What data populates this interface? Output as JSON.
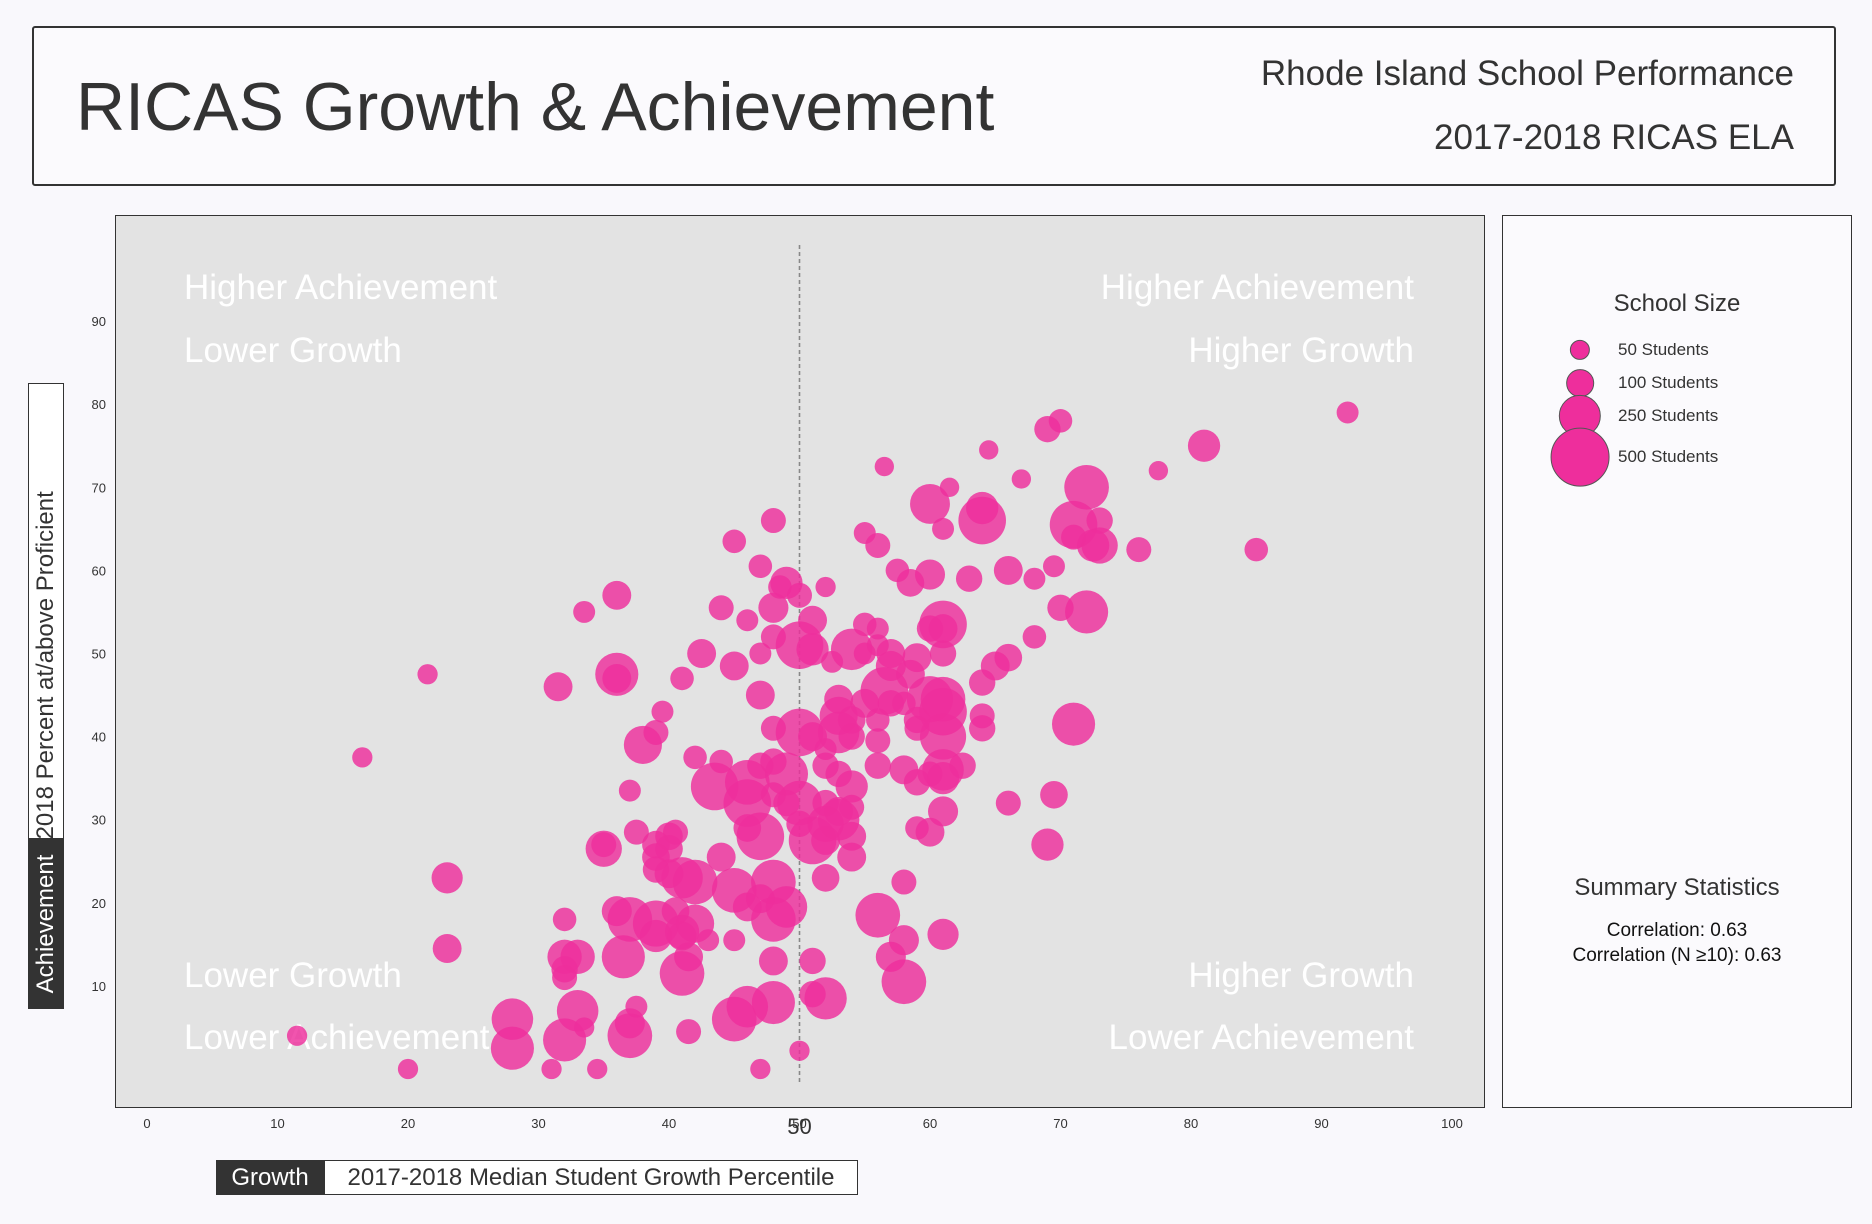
{
  "header": {
    "title": "RICAS Growth & Achievement",
    "subtitle_1": "Rhode Island School Performance",
    "subtitle_2": "2017-2018 RICAS ELA"
  },
  "axes": {
    "y_tag": "Achievement",
    "y_title": "2017-2018 Percent at/above Proficient",
    "x_tag": "Growth",
    "x_title": "2017-2018 Median Student Growth Percentile",
    "midline_label": "50"
  },
  "quadrants": {
    "top_left": [
      "Higher Achievement",
      "Lower Growth"
    ],
    "top_right": [
      "Higher Achievement",
      "Higher Growth"
    ],
    "bottom_left": [
      "Lower Growth",
      "Lower Achievement"
    ],
    "bottom_right": [
      "Higher Growth",
      "Lower Achievement"
    ]
  },
  "legend": {
    "title": "School Size",
    "items": [
      {
        "label": "50 Students",
        "students": 50
      },
      {
        "label": "100 Students",
        "students": 100
      },
      {
        "label": "250 Students",
        "students": 250
      },
      {
        "label": "500 Students",
        "students": 500
      }
    ]
  },
  "summary": {
    "title": "Summary Statistics",
    "correlation": "Correlation: 0.63",
    "correlation_n10": "Correlation (N ≥10): 0.63"
  },
  "colors": {
    "bubble": "#ee2e9c",
    "panel_bg": "#e3e3e3",
    "quadrant_text": "#ffffff"
  },
  "chart_data": {
    "type": "scatter",
    "xlim": [
      -2.5,
      102.5
    ],
    "ylim": [
      -2.5,
      102.5
    ],
    "x_ticks": [
      0,
      10,
      20,
      30,
      40,
      50,
      60,
      70,
      80,
      90,
      100
    ],
    "y_ticks": [
      10,
      20,
      30,
      40,
      50,
      60,
      70,
      80,
      90
    ],
    "reference_line_x": 50,
    "grid": false,
    "size_field": "students",
    "points": [
      {
        "x": 92,
        "y": 79,
        "students": 60
      },
      {
        "x": 81,
        "y": 75,
        "students": 140
      },
      {
        "x": 70,
        "y": 78,
        "students": 70
      },
      {
        "x": 69,
        "y": 77,
        "students": 90
      },
      {
        "x": 72,
        "y": 70,
        "students": 280
      },
      {
        "x": 77.5,
        "y": 72,
        "students": 45
      },
      {
        "x": 67,
        "y": 71,
        "students": 45
      },
      {
        "x": 64.5,
        "y": 74.5,
        "students": 45
      },
      {
        "x": 56.5,
        "y": 72.5,
        "students": 45
      },
      {
        "x": 61.5,
        "y": 70,
        "students": 45
      },
      {
        "x": 60,
        "y": 68,
        "students": 220
      },
      {
        "x": 64,
        "y": 67.5,
        "students": 140
      },
      {
        "x": 64,
        "y": 66,
        "students": 320
      },
      {
        "x": 71,
        "y": 65.5,
        "students": 320
      },
      {
        "x": 73,
        "y": 66,
        "students": 90
      },
      {
        "x": 61,
        "y": 65,
        "students": 60
      },
      {
        "x": 55,
        "y": 64.5,
        "students": 60
      },
      {
        "x": 56,
        "y": 63,
        "students": 80
      },
      {
        "x": 71,
        "y": 64,
        "students": 80
      },
      {
        "x": 72.5,
        "y": 63,
        "students": 140
      },
      {
        "x": 73,
        "y": 63,
        "students": 180
      },
      {
        "x": 76,
        "y": 62.5,
        "students": 80
      },
      {
        "x": 85,
        "y": 62.5,
        "students": 70
      },
      {
        "x": 48,
        "y": 66,
        "students": 80
      },
      {
        "x": 45,
        "y": 63.5,
        "students": 70
      },
      {
        "x": 47,
        "y": 60.5,
        "students": 70
      },
      {
        "x": 57.5,
        "y": 60,
        "students": 70
      },
      {
        "x": 60,
        "y": 59.5,
        "students": 120
      },
      {
        "x": 63,
        "y": 59,
        "students": 90
      },
      {
        "x": 66,
        "y": 60,
        "students": 110
      },
      {
        "x": 69.5,
        "y": 60.5,
        "students": 60
      },
      {
        "x": 68,
        "y": 59,
        "students": 60
      },
      {
        "x": 58.5,
        "y": 58.5,
        "students": 100
      },
      {
        "x": 48.5,
        "y": 58,
        "students": 70
      },
      {
        "x": 49,
        "y": 58.5,
        "students": 140
      },
      {
        "x": 50,
        "y": 57,
        "students": 80
      },
      {
        "x": 52,
        "y": 58,
        "students": 50
      },
      {
        "x": 36,
        "y": 57,
        "students": 110
      },
      {
        "x": 33.5,
        "y": 55,
        "students": 60
      },
      {
        "x": 44,
        "y": 55.5,
        "students": 80
      },
      {
        "x": 48,
        "y": 55.5,
        "students": 120
      },
      {
        "x": 46,
        "y": 54,
        "students": 60
      },
      {
        "x": 51,
        "y": 54,
        "students": 110
      },
      {
        "x": 55,
        "y": 53.5,
        "students": 70
      },
      {
        "x": 56,
        "y": 53,
        "students": 60
      },
      {
        "x": 61,
        "y": 53.5,
        "students": 320
      },
      {
        "x": 60,
        "y": 53,
        "students": 90
      },
      {
        "x": 61,
        "y": 53,
        "students": 110
      },
      {
        "x": 70,
        "y": 55.5,
        "students": 90
      },
      {
        "x": 72,
        "y": 55,
        "students": 260
      },
      {
        "x": 68,
        "y": 52,
        "students": 70
      },
      {
        "x": 48,
        "y": 52,
        "students": 80
      },
      {
        "x": 50,
        "y": 51,
        "students": 320
      },
      {
        "x": 51,
        "y": 50.5,
        "students": 140
      },
      {
        "x": 54,
        "y": 50.5,
        "students": 240
      },
      {
        "x": 56,
        "y": 51,
        "students": 60
      },
      {
        "x": 57,
        "y": 50,
        "students": 110
      },
      {
        "x": 59,
        "y": 49.5,
        "students": 110
      },
      {
        "x": 61,
        "y": 50,
        "students": 90
      },
      {
        "x": 66,
        "y": 49.5,
        "students": 100
      },
      {
        "x": 65,
        "y": 48.5,
        "students": 110
      },
      {
        "x": 42.5,
        "y": 50,
        "students": 110
      },
      {
        "x": 47,
        "y": 50,
        "students": 60
      },
      {
        "x": 45,
        "y": 48.5,
        "students": 110
      },
      {
        "x": 52.5,
        "y": 49,
        "students": 60
      },
      {
        "x": 55,
        "y": 50,
        "students": 60
      },
      {
        "x": 57,
        "y": 48.5,
        "students": 120
      },
      {
        "x": 58.5,
        "y": 47.5,
        "students": 110
      },
      {
        "x": 36,
        "y": 47.5,
        "students": 260
      },
      {
        "x": 36,
        "y": 47,
        "students": 110
      },
      {
        "x": 41,
        "y": 47,
        "students": 70
      },
      {
        "x": 21.5,
        "y": 47.5,
        "students": 50
      },
      {
        "x": 31.5,
        "y": 46,
        "students": 110
      },
      {
        "x": 47,
        "y": 45,
        "students": 110
      },
      {
        "x": 53,
        "y": 44.5,
        "students": 110
      },
      {
        "x": 55,
        "y": 44,
        "students": 110
      },
      {
        "x": 56.5,
        "y": 45.5,
        "students": 320
      },
      {
        "x": 57,
        "y": 44,
        "students": 90
      },
      {
        "x": 58,
        "y": 44,
        "students": 70
      },
      {
        "x": 60,
        "y": 44.5,
        "students": 300
      },
      {
        "x": 61,
        "y": 44.5,
        "students": 280
      },
      {
        "x": 64,
        "y": 46.5,
        "students": 90
      },
      {
        "x": 39.5,
        "y": 43,
        "students": 60
      },
      {
        "x": 53,
        "y": 42.5,
        "students": 200
      },
      {
        "x": 54,
        "y": 42,
        "students": 100
      },
      {
        "x": 56,
        "y": 42,
        "students": 70
      },
      {
        "x": 61,
        "y": 43,
        "students": 320
      },
      {
        "x": 59,
        "y": 42,
        "students": 90
      },
      {
        "x": 59,
        "y": 41,
        "students": 80
      },
      {
        "x": 64,
        "y": 42.5,
        "students": 80
      },
      {
        "x": 64,
        "y": 41,
        "students": 90
      },
      {
        "x": 71,
        "y": 41.5,
        "students": 260
      },
      {
        "x": 39,
        "y": 40.5,
        "students": 80
      },
      {
        "x": 48,
        "y": 41,
        "students": 80
      },
      {
        "x": 50,
        "y": 40.5,
        "students": 320
      },
      {
        "x": 51,
        "y": 40,
        "students": 110
      },
      {
        "x": 53,
        "y": 40.5,
        "students": 240
      },
      {
        "x": 54,
        "y": 40,
        "students": 90
      },
      {
        "x": 56,
        "y": 39.5,
        "students": 80
      },
      {
        "x": 61,
        "y": 40,
        "students": 300
      },
      {
        "x": 38,
        "y": 39,
        "students": 200
      },
      {
        "x": 52,
        "y": 38.5,
        "students": 60
      },
      {
        "x": 42,
        "y": 37.5,
        "students": 70
      },
      {
        "x": 44,
        "y": 37,
        "students": 70
      },
      {
        "x": 47,
        "y": 36.5,
        "students": 90
      },
      {
        "x": 48,
        "y": 37,
        "students": 90
      },
      {
        "x": 49,
        "y": 35.5,
        "students": 260
      },
      {
        "x": 52,
        "y": 36.5,
        "students": 90
      },
      {
        "x": 53,
        "y": 35.5,
        "students": 90
      },
      {
        "x": 56,
        "y": 36.5,
        "students": 90
      },
      {
        "x": 58,
        "y": 36,
        "students": 110
      },
      {
        "x": 60,
        "y": 35.5,
        "students": 80
      },
      {
        "x": 61,
        "y": 36,
        "students": 240
      },
      {
        "x": 61,
        "y": 35,
        "students": 140
      },
      {
        "x": 62.5,
        "y": 36.5,
        "students": 90
      },
      {
        "x": 59,
        "y": 34.5,
        "students": 90
      },
      {
        "x": 43.5,
        "y": 34,
        "students": 320
      },
      {
        "x": 46,
        "y": 34.5,
        "students": 280
      },
      {
        "x": 48,
        "y": 33,
        "students": 80
      },
      {
        "x": 54,
        "y": 34,
        "students": 140
      },
      {
        "x": 37,
        "y": 33.5,
        "students": 60
      },
      {
        "x": 46,
        "y": 32,
        "students": 320
      },
      {
        "x": 49,
        "y": 32,
        "students": 90
      },
      {
        "x": 50,
        "y": 32,
        "students": 280
      },
      {
        "x": 52,
        "y": 32,
        "students": 90
      },
      {
        "x": 53,
        "y": 31,
        "students": 110
      },
      {
        "x": 54,
        "y": 31.5,
        "students": 80
      },
      {
        "x": 61,
        "y": 31,
        "students": 120
      },
      {
        "x": 66,
        "y": 32,
        "students": 80
      },
      {
        "x": 69.5,
        "y": 33,
        "students": 100
      },
      {
        "x": 50,
        "y": 29.5,
        "students": 90
      },
      {
        "x": 46,
        "y": 29,
        "students": 100
      },
      {
        "x": 47,
        "y": 28,
        "students": 320
      },
      {
        "x": 53,
        "y": 30,
        "students": 240
      },
      {
        "x": 52,
        "y": 29.5,
        "students": 180
      },
      {
        "x": 54,
        "y": 28,
        "students": 110
      },
      {
        "x": 51,
        "y": 27.5,
        "students": 320
      },
      {
        "x": 52,
        "y": 27.5,
        "students": 110
      },
      {
        "x": 59,
        "y": 29,
        "students": 70
      },
      {
        "x": 60,
        "y": 28.5,
        "students": 110
      },
      {
        "x": 69,
        "y": 27,
        "students": 140
      },
      {
        "x": 37.5,
        "y": 28.5,
        "students": 80
      },
      {
        "x": 40,
        "y": 28,
        "students": 100
      },
      {
        "x": 40.5,
        "y": 28.5,
        "students": 80
      },
      {
        "x": 35,
        "y": 26.5,
        "students": 180
      },
      {
        "x": 35,
        "y": 27,
        "students": 80
      },
      {
        "x": 39,
        "y": 27,
        "students": 100
      },
      {
        "x": 40,
        "y": 26.5,
        "students": 100
      },
      {
        "x": 39,
        "y": 25.5,
        "students": 100
      },
      {
        "x": 44,
        "y": 25.5,
        "students": 110
      },
      {
        "x": 54,
        "y": 25.5,
        "students": 110
      },
      {
        "x": 39,
        "y": 24,
        "students": 90
      },
      {
        "x": 40,
        "y": 23.5,
        "students": 110
      },
      {
        "x": 41,
        "y": 23,
        "students": 240
      },
      {
        "x": 42,
        "y": 22.5,
        "students": 280
      },
      {
        "x": 45,
        "y": 21.5,
        "students": 280
      },
      {
        "x": 48,
        "y": 22.5,
        "students": 280
      },
      {
        "x": 52,
        "y": 23,
        "students": 100
      },
      {
        "x": 58,
        "y": 22.5,
        "students": 80
      },
      {
        "x": 23,
        "y": 23,
        "students": 130
      },
      {
        "x": 46,
        "y": 19.5,
        "students": 110
      },
      {
        "x": 47,
        "y": 20.5,
        "students": 110
      },
      {
        "x": 49,
        "y": 19.5,
        "students": 240
      },
      {
        "x": 36,
        "y": 19,
        "students": 120
      },
      {
        "x": 40.5,
        "y": 19,
        "students": 100
      },
      {
        "x": 37,
        "y": 18,
        "students": 280
      },
      {
        "x": 39,
        "y": 17.5,
        "students": 300
      },
      {
        "x": 42,
        "y": 17.5,
        "students": 200
      },
      {
        "x": 48,
        "y": 18,
        "students": 280
      },
      {
        "x": 56,
        "y": 18.5,
        "students": 280
      },
      {
        "x": 32,
        "y": 18,
        "students": 70
      },
      {
        "x": 39,
        "y": 16,
        "students": 140
      },
      {
        "x": 41,
        "y": 16.5,
        "students": 160
      },
      {
        "x": 41,
        "y": 16,
        "students": 110
      },
      {
        "x": 43,
        "y": 15.5,
        "students": 60
      },
      {
        "x": 45,
        "y": 15.5,
        "students": 60
      },
      {
        "x": 58,
        "y": 15.5,
        "students": 120
      },
      {
        "x": 61,
        "y": 16.2,
        "students": 130
      },
      {
        "x": 23,
        "y": 14.5,
        "students": 110
      },
      {
        "x": 32,
        "y": 13.5,
        "students": 160
      },
      {
        "x": 33,
        "y": 13.5,
        "students": 160
      },
      {
        "x": 32,
        "y": 12,
        "students": 90
      },
      {
        "x": 32,
        "y": 11,
        "students": 80
      },
      {
        "x": 36.5,
        "y": 13.5,
        "students": 260
      },
      {
        "x": 41,
        "y": 11.5,
        "students": 280
      },
      {
        "x": 41.5,
        "y": 13.5,
        "students": 110
      },
      {
        "x": 48,
        "y": 13,
        "students": 110
      },
      {
        "x": 51,
        "y": 13,
        "students": 90
      },
      {
        "x": 57,
        "y": 13.5,
        "students": 120
      },
      {
        "x": 58,
        "y": 10.5,
        "students": 280
      },
      {
        "x": 51,
        "y": 9,
        "students": 90
      },
      {
        "x": 52,
        "y": 8.5,
        "students": 250
      },
      {
        "x": 48,
        "y": 8,
        "students": 260
      },
      {
        "x": 46,
        "y": 7.5,
        "students": 240
      },
      {
        "x": 33,
        "y": 7,
        "students": 240
      },
      {
        "x": 37.5,
        "y": 7.5,
        "students": 60
      },
      {
        "x": 28,
        "y": 6,
        "students": 240
      },
      {
        "x": 45,
        "y": 6,
        "students": 280
      },
      {
        "x": 37,
        "y": 5.5,
        "students": 120
      },
      {
        "x": 33.5,
        "y": 5,
        "students": 50
      },
      {
        "x": 32,
        "y": 3.5,
        "students": 260
      },
      {
        "x": 37,
        "y": 4,
        "students": 280
      },
      {
        "x": 41.5,
        "y": 4.5,
        "students": 80
      },
      {
        "x": 11.5,
        "y": 4,
        "students": 50
      },
      {
        "x": 28,
        "y": 2.5,
        "students": 260
      },
      {
        "x": 50,
        "y": 2.2,
        "students": 50
      },
      {
        "x": 16.5,
        "y": 37.5,
        "students": 50
      },
      {
        "x": 20,
        "y": 0,
        "students": 50
      },
      {
        "x": 31,
        "y": 0,
        "students": 50
      },
      {
        "x": 34.5,
        "y": 0,
        "students": 50
      },
      {
        "x": 47,
        "y": 0,
        "students": 50
      }
    ]
  }
}
